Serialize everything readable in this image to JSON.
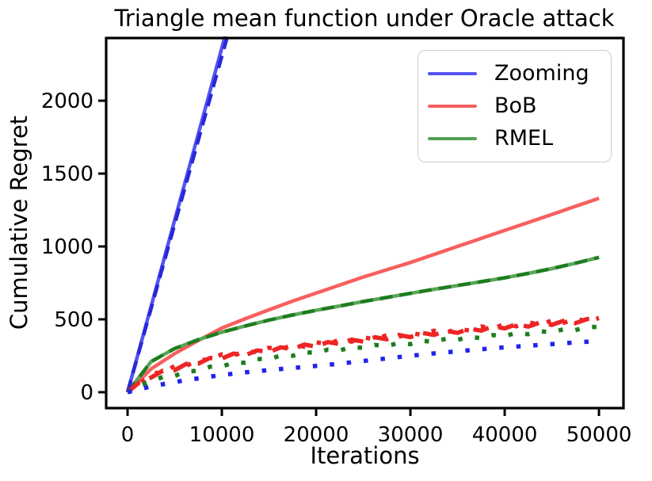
{
  "figure": {
    "title": "Triangle mean function under Oracle attack"
  },
  "axes": {
    "x": {
      "label": "Iterations",
      "tick_labels": [
        "0",
        "10000",
        "20000",
        "30000",
        "40000",
        "50000"
      ]
    },
    "y": {
      "label": "Cumulative Regret",
      "tick_labels": [
        "0",
        "500",
        "1000",
        "1500",
        "2000"
      ]
    }
  },
  "legend": {
    "items": [
      {
        "label": "Zooming",
        "color": "#5454f0"
      },
      {
        "label": "BoB",
        "color": "#f75f5f"
      },
      {
        "label": "RMEL",
        "color": "#55a155"
      }
    ]
  },
  "chart_data": {
    "type": "line",
    "title": "Triangle mean function under Oracle attack",
    "xlabel": "Iterations",
    "ylabel": "Cumulative Regret",
    "xlim": [
      -2270,
      52600
    ],
    "ylim": [
      -109,
      2430
    ],
    "x_ticks": [
      0,
      10000,
      20000,
      30000,
      40000,
      50000
    ],
    "y_ticks": [
      0,
      500,
      1000,
      1500,
      2000
    ],
    "grid": false,
    "legend_position": "upper right",
    "note": "Each algorithm has three curves: solid, dashed and dotted variants in the same hue. Blue solid/dashed exit the top of the axes near x=10500.",
    "series": [
      {
        "name": "BoB-solid",
        "legend": "BoB",
        "color": "#f75f5f",
        "style": "solid",
        "x_step": 2500,
        "values": [
          0,
          160,
          265,
          355,
          440,
          505,
          565,
          625,
          680,
          735,
          790,
          840,
          890,
          945,
          1000,
          1055,
          1110,
          1165,
          1220,
          1275,
          1330
        ]
      },
      {
        "name": "RMEL-solid",
        "legend": "RMEL",
        "color": "#5aa55a",
        "style": "solid",
        "x_step": 2500,
        "values": [
          0,
          210,
          300,
          360,
          412,
          455,
          495,
          530,
          562,
          592,
          622,
          650,
          678,
          706,
          732,
          758,
          785,
          815,
          848,
          885,
          925
        ]
      },
      {
        "name": "RMEL-dashed",
        "legend": "RMEL",
        "color": "#1e7d1e",
        "style": "dashed",
        "x_step": 2500,
        "values": [
          0,
          210,
          300,
          360,
          412,
          455,
          495,
          530,
          562,
          592,
          622,
          650,
          678,
          706,
          732,
          758,
          785,
          815,
          848,
          885,
          925
        ]
      },
      {
        "name": "Zooming-solid",
        "legend": "Zooming",
        "color": "#5454f0",
        "style": "solid",
        "x_step": 2500,
        "values": [
          0,
          590,
          1181,
          1771,
          2362,
          2952,
          3543
        ]
      },
      {
        "name": "Zooming-dashed",
        "legend": "Zooming",
        "color": "#2828d8",
        "style": "dashed",
        "x_step": 2500,
        "values": [
          0,
          576,
          1153,
          1729,
          2305,
          2881,
          3458
        ]
      },
      {
        "name": "BoB-dashed",
        "legend": "BoB",
        "color": "#ee2525",
        "style": "dashed-heavy",
        "x_step": 1250,
        "values": [
          0,
          68,
          101,
          148,
          151,
          195,
          196,
          235,
          231,
          265,
          254,
          287,
          276,
          308,
          296,
          327,
          313,
          344,
          331,
          361,
          347,
          377,
          363,
          393,
          378,
          407,
          393,
          422,
          407,
          437,
          422,
          452,
          438,
          466,
          450,
          478,
          462,
          490,
          474,
          502,
          500
        ]
      },
      {
        "name": "BoB-dotted",
        "legend": "BoB",
        "color": "#ee2525",
        "style": "dotted",
        "x_step": 1250,
        "values": [
          0,
          54,
          130,
          134,
          180,
          181,
          225,
          221,
          260,
          251,
          283,
          273,
          305,
          294,
          325,
          313,
          342,
          330,
          360,
          347,
          376,
          363,
          392,
          379,
          407,
          393,
          422,
          408,
          436,
          423,
          451,
          438,
          467,
          452,
          479,
          464,
          491,
          476,
          503,
          488,
          508
        ]
      },
      {
        "name": "RMEL-dotted",
        "legend": "RMEL",
        "color": "#1e7d1e",
        "style": "dotted",
        "x_step": 1250,
        "values": [
          0,
          47,
          72,
          106,
          112,
          143,
          146,
          175,
          176,
          203,
          202,
          228,
          226,
          252,
          250,
          274,
          270,
          292,
          287,
          309,
          304,
          324,
          317,
          337,
          330,
          352,
          346,
          366,
          359,
          379,
          371,
          392,
          386,
          406,
          398,
          418,
          411,
          432,
          426,
          448,
          448
        ]
      },
      {
        "name": "Zooming-dotted",
        "legend": "Zooming",
        "color": "#2222ee",
        "style": "dotted",
        "x_step": 2500,
        "values": [
          0,
          40,
          70,
          95,
          118,
          136,
          152,
          166,
          180,
          196,
          214,
          232,
          250,
          266,
          281,
          295,
          308,
          319,
          330,
          341,
          352
        ]
      }
    ]
  }
}
